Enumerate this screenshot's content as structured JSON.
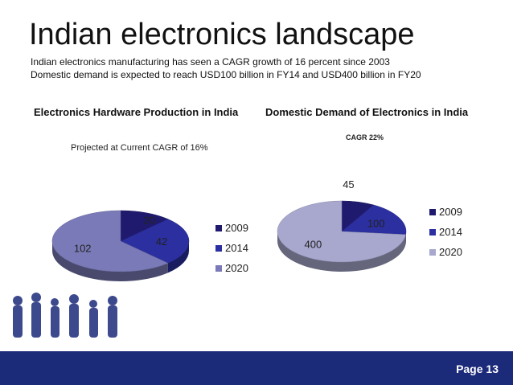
{
  "slide": {
    "title": "Indian electronics landscape",
    "subtitle_line1": "Indian electronics manufacturing has seen a CAGR growth of 16 percent since 2003",
    "subtitle_line2": "Domestic demand is expected to reach USD100 billion in FY14 and USD400 billion in FY20",
    "page_label": "Page 13"
  },
  "colors": {
    "series_2009": "#1f1a6e",
    "series_2014": "#2b2fa0",
    "series_2020": "#7a7ab8",
    "series_2020_alt": "#a8a8cf",
    "footer": "#1c2a7a"
  },
  "chart_data": [
    {
      "type": "pie",
      "title": "Electronics Hardware Production in India",
      "note": "Projected at Current CAGR of 16%",
      "categories": [
        "2009",
        "2014",
        "2020"
      ],
      "values": [
        20,
        42,
        102
      ],
      "legend": [
        "2009",
        "2014",
        "2020"
      ],
      "legend_position": "right"
    },
    {
      "type": "pie",
      "title": "Domestic Demand of Electronics in India",
      "note": "CAGR   22%",
      "categories": [
        "2009",
        "2014",
        "2020"
      ],
      "values": [
        45,
        100,
        400
      ],
      "legend": [
        "2009",
        "2014",
        "2020"
      ],
      "legend_position": "right"
    }
  ]
}
